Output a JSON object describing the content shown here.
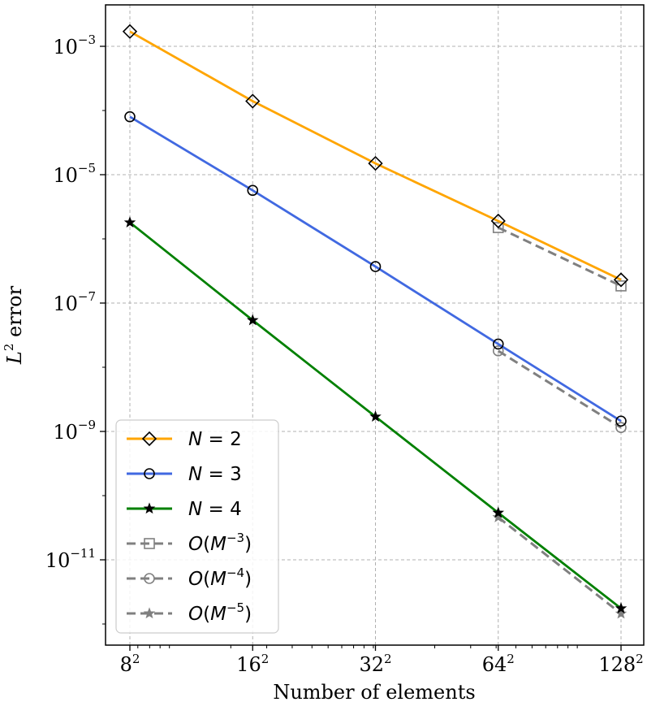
{
  "chart_data": {
    "type": "line",
    "xlabel": "Number of elements",
    "ylabel_base": "L",
    "ylabel_sup": "2",
    "ylabel_rest": " error",
    "x_scale": "log2",
    "y_scale": "log10",
    "x": [
      64,
      256,
      1024,
      4096,
      16384
    ],
    "x_tick_labels": [
      {
        "base": "8",
        "sup": "2"
      },
      {
        "base": "16",
        "sup": "2"
      },
      {
        "base": "32",
        "sup": "2"
      },
      {
        "base": "64",
        "sup": "2"
      },
      {
        "base": "128",
        "sup": "2"
      }
    ],
    "y_ticks": [
      {
        "value": 0.001,
        "base": "10",
        "sup": "−3"
      },
      {
        "value": 1e-05,
        "base": "10",
        "sup": "−5"
      },
      {
        "value": 1e-07,
        "base": "10",
        "sup": "−7"
      },
      {
        "value": 1e-09,
        "base": "10",
        "sup": "−9"
      },
      {
        "value": 1e-11,
        "base": "10",
        "sup": "−11"
      }
    ],
    "grid": true,
    "legend_position": "bottom-left",
    "series": [
      {
        "name": "N = 2",
        "legend": {
          "italic": "N",
          "rest": " = 2"
        },
        "color": "#FFA500",
        "style": "solid",
        "marker": "diamond",
        "x": [
          64,
          256,
          1024,
          4096,
          16384
        ],
        "values": [
          0.0017,
          0.00014,
          1.5e-05,
          1.9e-06,
          2.3e-07
        ]
      },
      {
        "name": "N = 3",
        "legend": {
          "italic": "N",
          "rest": " = 3"
        },
        "color": "#4169E1",
        "style": "solid",
        "marker": "circle",
        "x": [
          64,
          256,
          1024,
          4096,
          16384
        ],
        "values": [
          8e-05,
          5.7e-06,
          3.7e-07,
          2.3e-08,
          1.45e-09
        ]
      },
      {
        "name": "N = 4",
        "legend": {
          "italic": "N",
          "rest": " = 4"
        },
        "color": "#008000",
        "style": "solid",
        "marker": "star",
        "x": [
          64,
          256,
          1024,
          4096,
          16384
        ],
        "values": [
          1.8e-06,
          5.4e-08,
          1.7e-09,
          5.4e-11,
          1.75e-12
        ]
      },
      {
        "name": "O(M^-3)",
        "legend": {
          "italic": "O",
          "rest": "(",
          "italic2": "M",
          "sup": "−3",
          "end": ")"
        },
        "color": "#808080",
        "style": "dashed",
        "marker": "square",
        "x": [
          4096,
          16384
        ],
        "values": [
          1.5e-06,
          1.85e-07
        ]
      },
      {
        "name": "O(M^-4)",
        "legend": {
          "italic": "O",
          "rest": "(",
          "italic2": "M",
          "sup": "−4",
          "end": ")"
        },
        "color": "#808080",
        "style": "dashed",
        "marker": "circle",
        "x": [
          4096,
          16384
        ],
        "values": [
          1.8e-08,
          1.15e-09
        ]
      },
      {
        "name": "O(M^-5)",
        "legend": {
          "italic": "O",
          "rest": "(",
          "italic2": "M",
          "sup": "−5",
          "end": ")"
        },
        "color": "#808080",
        "style": "dashed",
        "marker": "star",
        "x": [
          4096,
          16384
        ],
        "values": [
          4.6e-11,
          1.45e-12
        ]
      }
    ]
  }
}
